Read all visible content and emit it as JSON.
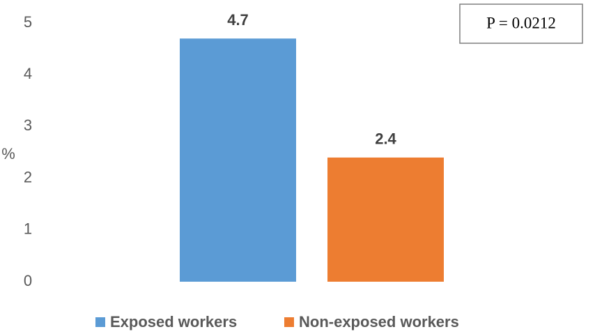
{
  "chart_data": {
    "type": "bar",
    "y_label": "%",
    "annotation": "P = 0.0212",
    "categories": [
      null
    ],
    "series": [
      {
        "name": "Exposed workers",
        "color": "#5b9bd5",
        "values": [
          4.7
        ]
      },
      {
        "name": "Non-exposed workers",
        "color": "#ed7d31",
        "values": [
          2.4
        ]
      }
    ],
    "ylim": [
      0,
      5
    ],
    "yticks": [
      0,
      1,
      2,
      3,
      4,
      5
    ],
    "grid": false,
    "data_labels": true,
    "legend": "bottom"
  }
}
